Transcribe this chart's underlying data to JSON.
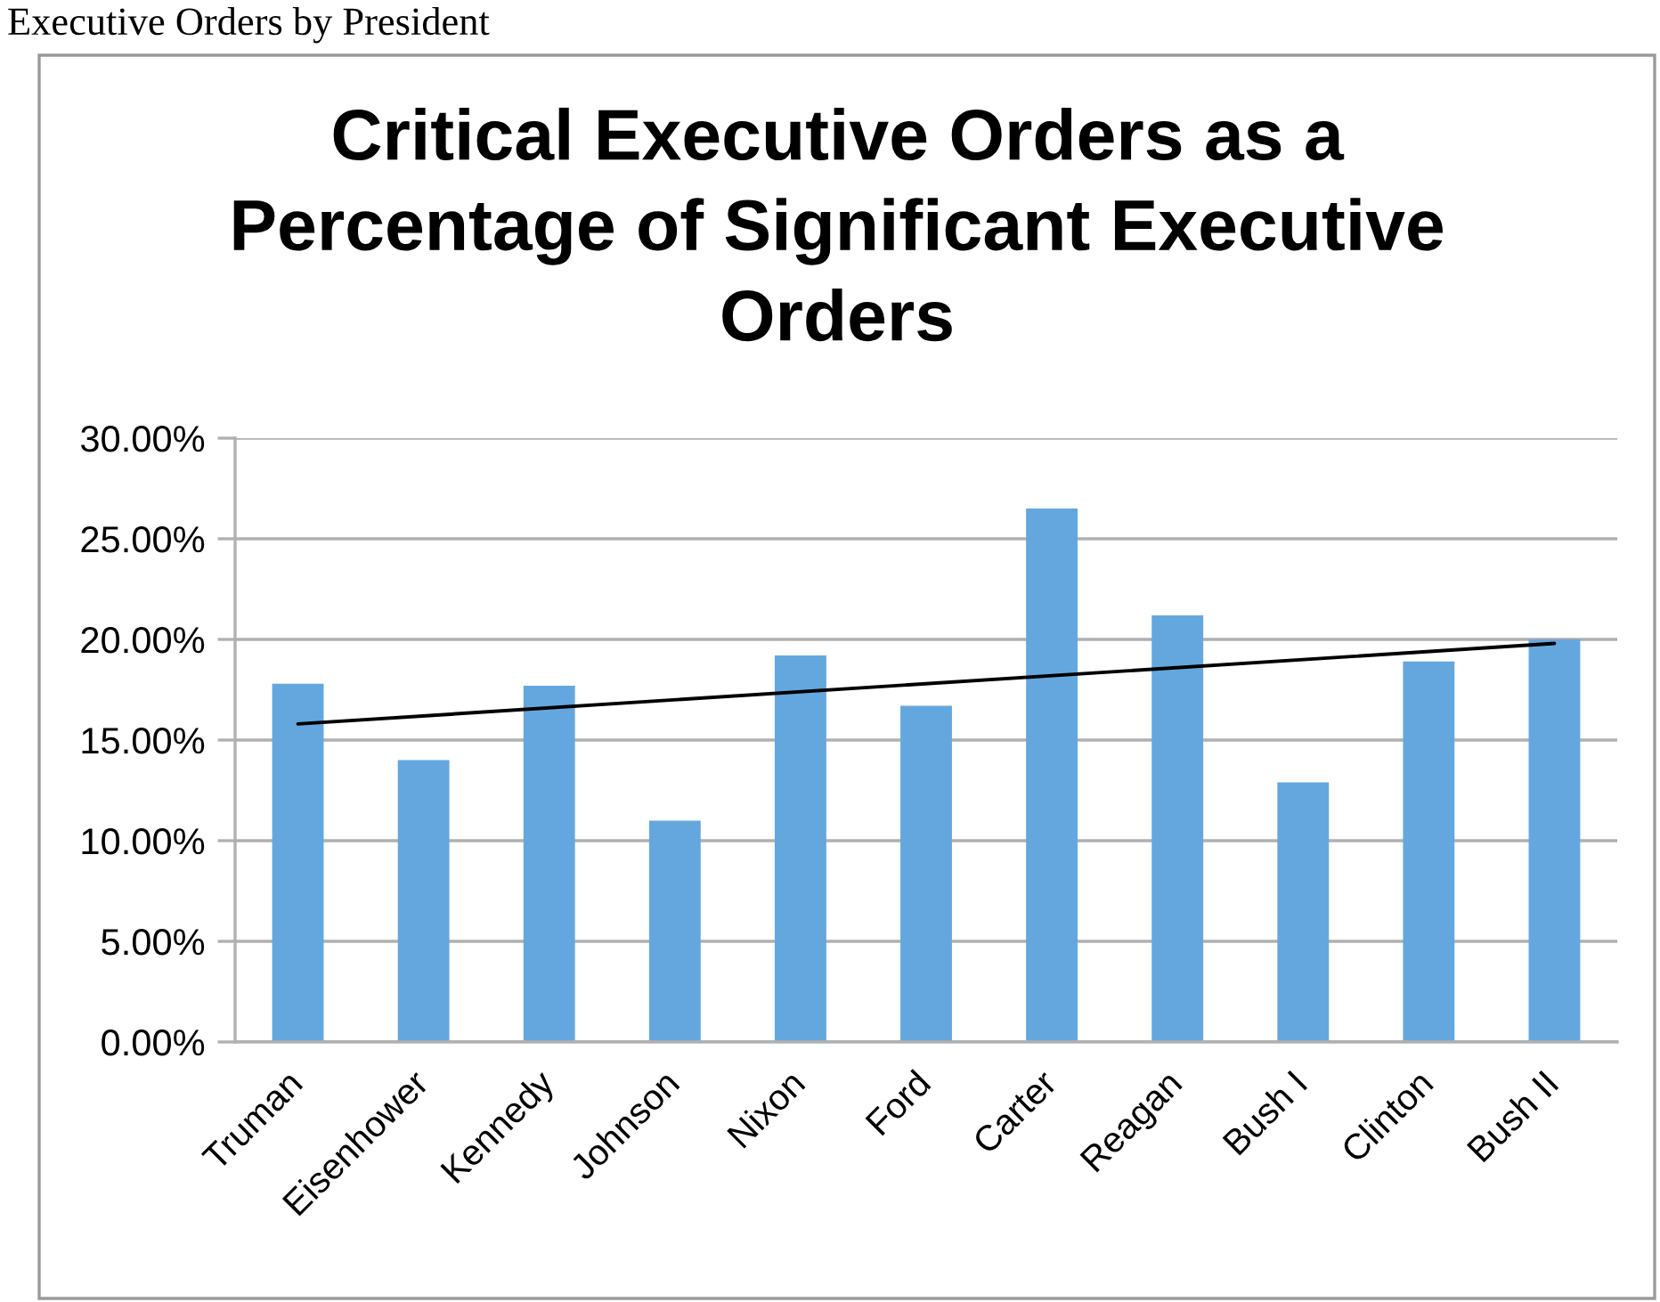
{
  "chart_data": {
    "type": "bar",
    "title": "Critical Executive Orders as a\nPercentage of Significant Executive\nOrders",
    "categories": [
      "Truman",
      "Eisenhower",
      "Kennedy",
      "Johnson",
      "Nixon",
      "Ford",
      "Carter",
      "Reagan",
      "Bush I",
      "Clinton",
      "Bush II"
    ],
    "series": [
      {
        "color": "#64a7de",
        "values": [
          17.8,
          14.0,
          17.7,
          11.0,
          19.2,
          16.7,
          26.5,
          21.2,
          12.9,
          18.9,
          20.0
        ]
      },
      {
        "type": "line",
        "color": "#000000",
        "x": [
          "Truman",
          "Bush II"
        ],
        "values": [
          15.8,
          19.8
        ]
      }
    ],
    "ylim": [
      0,
      30
    ],
    "yticks": [
      {
        "value": 0,
        "label": "0.00%"
      },
      {
        "value": 5,
        "label": "5.00%"
      },
      {
        "value": 10,
        "label": "10.00%"
      },
      {
        "value": 15,
        "label": "15.00%"
      },
      {
        "value": 20,
        "label": "20.00%"
      },
      {
        "value": 25,
        "label": "25.00%"
      },
      {
        "value": 30,
        "label": "30.00%"
      }
    ],
    "grid": "y",
    "annotations": [
      "Executive Orders by President"
    ]
  }
}
